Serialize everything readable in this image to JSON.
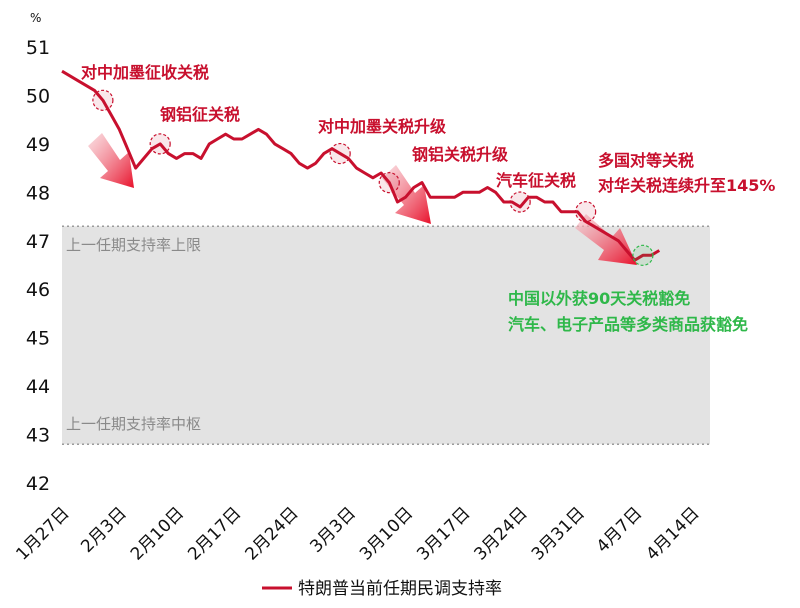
{
  "chart_data": {
    "type": "line",
    "unit_label": "%",
    "ylim": [
      42,
      51
    ],
    "yticks": [
      42,
      43,
      44,
      45,
      46,
      47,
      48,
      49,
      50,
      51
    ],
    "x_tick_labels": [
      "1月27日",
      "2月3日",
      "2月10日",
      "2月17日",
      "2月24日",
      "3月3日",
      "3月10日",
      "3月17日",
      "3月24日",
      "3月31日",
      "4月7日",
      "4月14日"
    ],
    "x_tick_days": [
      0,
      7,
      14,
      21,
      28,
      35,
      42,
      49,
      56,
      63,
      70,
      77
    ],
    "xlim": [
      0,
      77
    ],
    "series": [
      {
        "name": "特朗普当前任期民调支持率",
        "color": "#c8102e",
        "x": [
          0,
          2,
          4,
          5,
          6,
          7,
          8,
          9,
          10,
          11,
          12,
          13,
          14,
          15,
          16,
          17,
          18,
          19,
          20,
          21,
          22,
          23,
          24,
          25,
          26,
          27,
          28,
          29,
          30,
          31,
          32,
          33,
          34,
          35,
          36,
          37,
          38,
          39,
          40,
          41,
          42,
          43,
          44,
          45,
          46,
          47,
          48,
          49,
          50,
          51,
          52,
          53,
          54,
          55,
          56,
          57,
          58,
          59,
          60,
          61,
          62,
          63,
          64,
          65,
          66,
          67,
          68,
          69,
          70,
          71,
          72,
          73
        ],
        "values": [
          50.5,
          50.3,
          50.1,
          49.9,
          49.6,
          49.3,
          48.9,
          48.5,
          48.7,
          48.9,
          49.0,
          48.8,
          48.7,
          48.8,
          48.8,
          48.7,
          49.0,
          49.1,
          49.2,
          49.1,
          49.1,
          49.2,
          49.3,
          49.2,
          49.0,
          48.9,
          48.8,
          48.6,
          48.5,
          48.6,
          48.8,
          48.9,
          48.8,
          48.7,
          48.5,
          48.4,
          48.3,
          48.4,
          48.2,
          47.8,
          47.9,
          48.1,
          48.2,
          47.9,
          47.9,
          47.9,
          47.9,
          48.0,
          48.0,
          48.0,
          48.1,
          48.0,
          47.8,
          47.8,
          47.7,
          47.9,
          47.9,
          47.8,
          47.8,
          47.6,
          47.6,
          47.6,
          47.4,
          47.3,
          47.2,
          47.1,
          47.0,
          46.8,
          46.6,
          46.7,
          46.7,
          46.8
        ]
      }
    ],
    "band": {
      "y_low": 42.8,
      "y_high": 47.3,
      "upper_label": "上一任期支持率上限",
      "center_label": "上一任期支持率中枢",
      "color": "#e3e3e3"
    },
    "annotations": [
      {
        "text": "对中加墨征收关税",
        "x": 5,
        "y": 49.9,
        "color": "red"
      },
      {
        "text": "钢铝征关税",
        "x": 12,
        "y": 49.0,
        "color": "red"
      },
      {
        "text": "对中加墨关税升级",
        "x": 34,
        "y": 48.8,
        "color": "red"
      },
      {
        "text": "钢铝关税升级",
        "x": 40,
        "y": 48.2,
        "color": "red"
      },
      {
        "text": "汽车征关税",
        "x": 56,
        "y": 47.8,
        "color": "red"
      },
      {
        "text": "多国对等关税",
        "x": 0,
        "y": 0,
        "color": "red"
      },
      {
        "text": "对华关税连续升至145%",
        "x": 64,
        "y": 47.6,
        "color": "red"
      },
      {
        "text": "中国以外获90天关税豁免",
        "x": 0,
        "y": 0,
        "color": "green"
      },
      {
        "text": "汽车、电子产品等多类商品获豁免",
        "x": 71,
        "y": 46.7,
        "color": "green"
      }
    ],
    "legend": {
      "placement": "bottom",
      "label": "特朗普当前任期民调支持率"
    },
    "grid": false
  }
}
